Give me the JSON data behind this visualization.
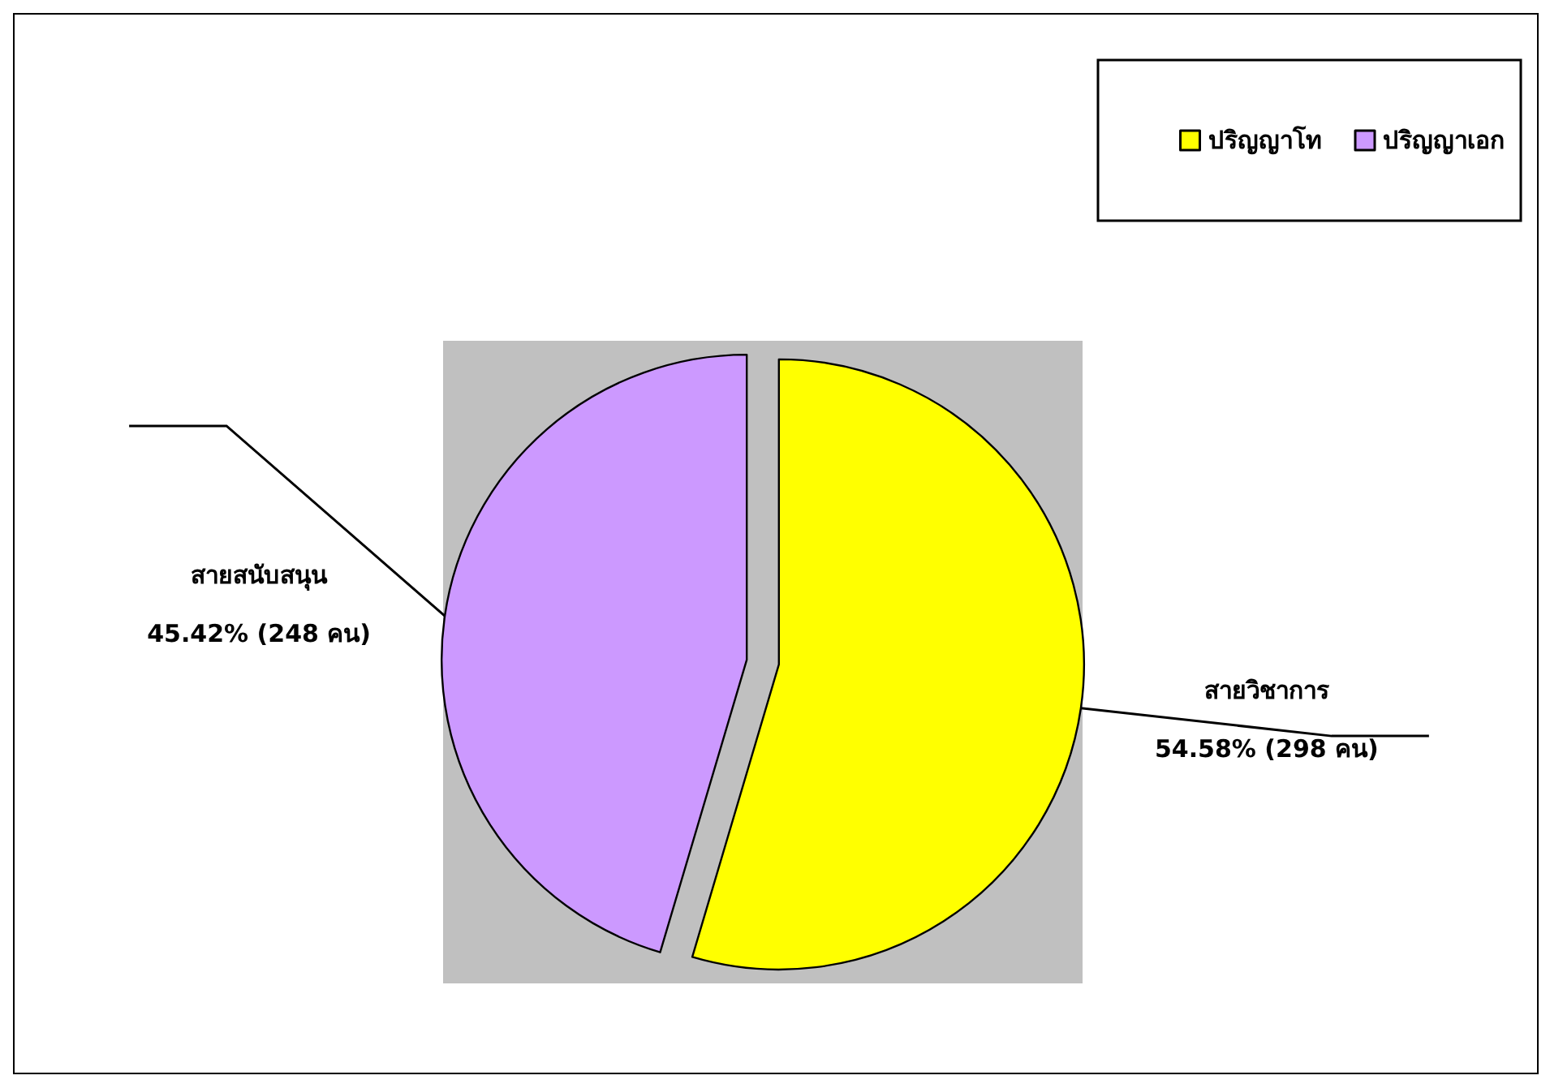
{
  "chart_data": {
    "type": "pie",
    "categories": [
      "ปริญญาโท",
      "ปริญญาเอก"
    ],
    "values": [
      54.58,
      45.42
    ],
    "colors": [
      "#ffff00",
      "#cc99ff"
    ],
    "value_labels": [
      "สายวิชาการ\n\n54.58% (298 คน)",
      "สายสนับสนุน\n\n45.42% (248 คน)"
    ],
    "legend": "top right"
  }
}
